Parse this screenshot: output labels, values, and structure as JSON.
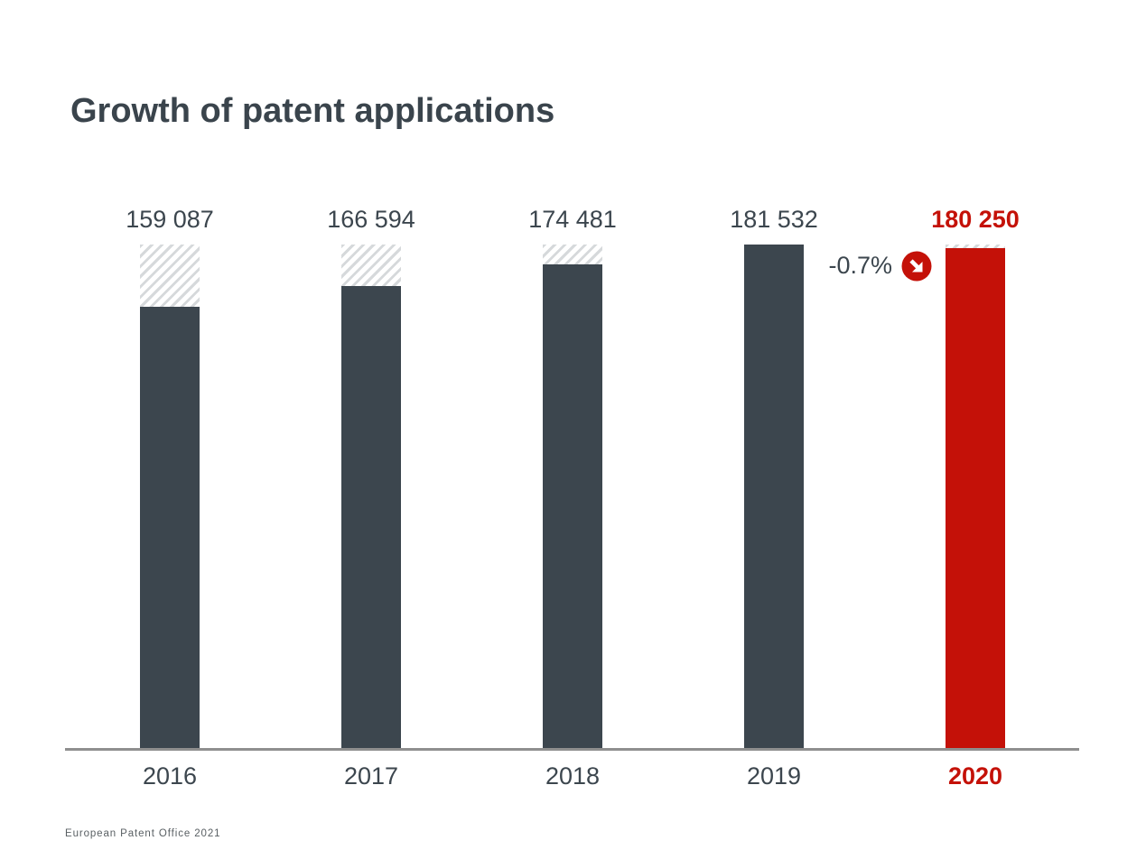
{
  "page": {
    "title": "Growth of patent applications",
    "footer": "European Patent Office 2021"
  },
  "chart_data": {
    "type": "bar",
    "title": "Growth of patent applications",
    "categories": [
      "2016",
      "2017",
      "2018",
      "2019",
      "2020"
    ],
    "values": [
      159087,
      166594,
      174481,
      181532,
      180250
    ],
    "value_labels": [
      "159 087",
      "166 594",
      "174 481",
      "181 532",
      "180 250"
    ],
    "xlabel": "",
    "ylabel": "",
    "ylim": [
      0,
      181532
    ],
    "grid": false,
    "legend": "none",
    "highlight_category": "2020",
    "hatch_note": "each bar topped by diagonal hatched segment up to the 181 532 maximum level",
    "annotation": {
      "text": "-0.7%",
      "icon": "arrow-down-right-circle-icon",
      "applies_to": "2020"
    },
    "colors": {
      "bar": "#3c464e",
      "highlight": "#c41108",
      "hatch": "#d6d9db",
      "axis": "#8f8f8f",
      "title_text": "#3a444c",
      "footer_text": "#595f63"
    }
  }
}
